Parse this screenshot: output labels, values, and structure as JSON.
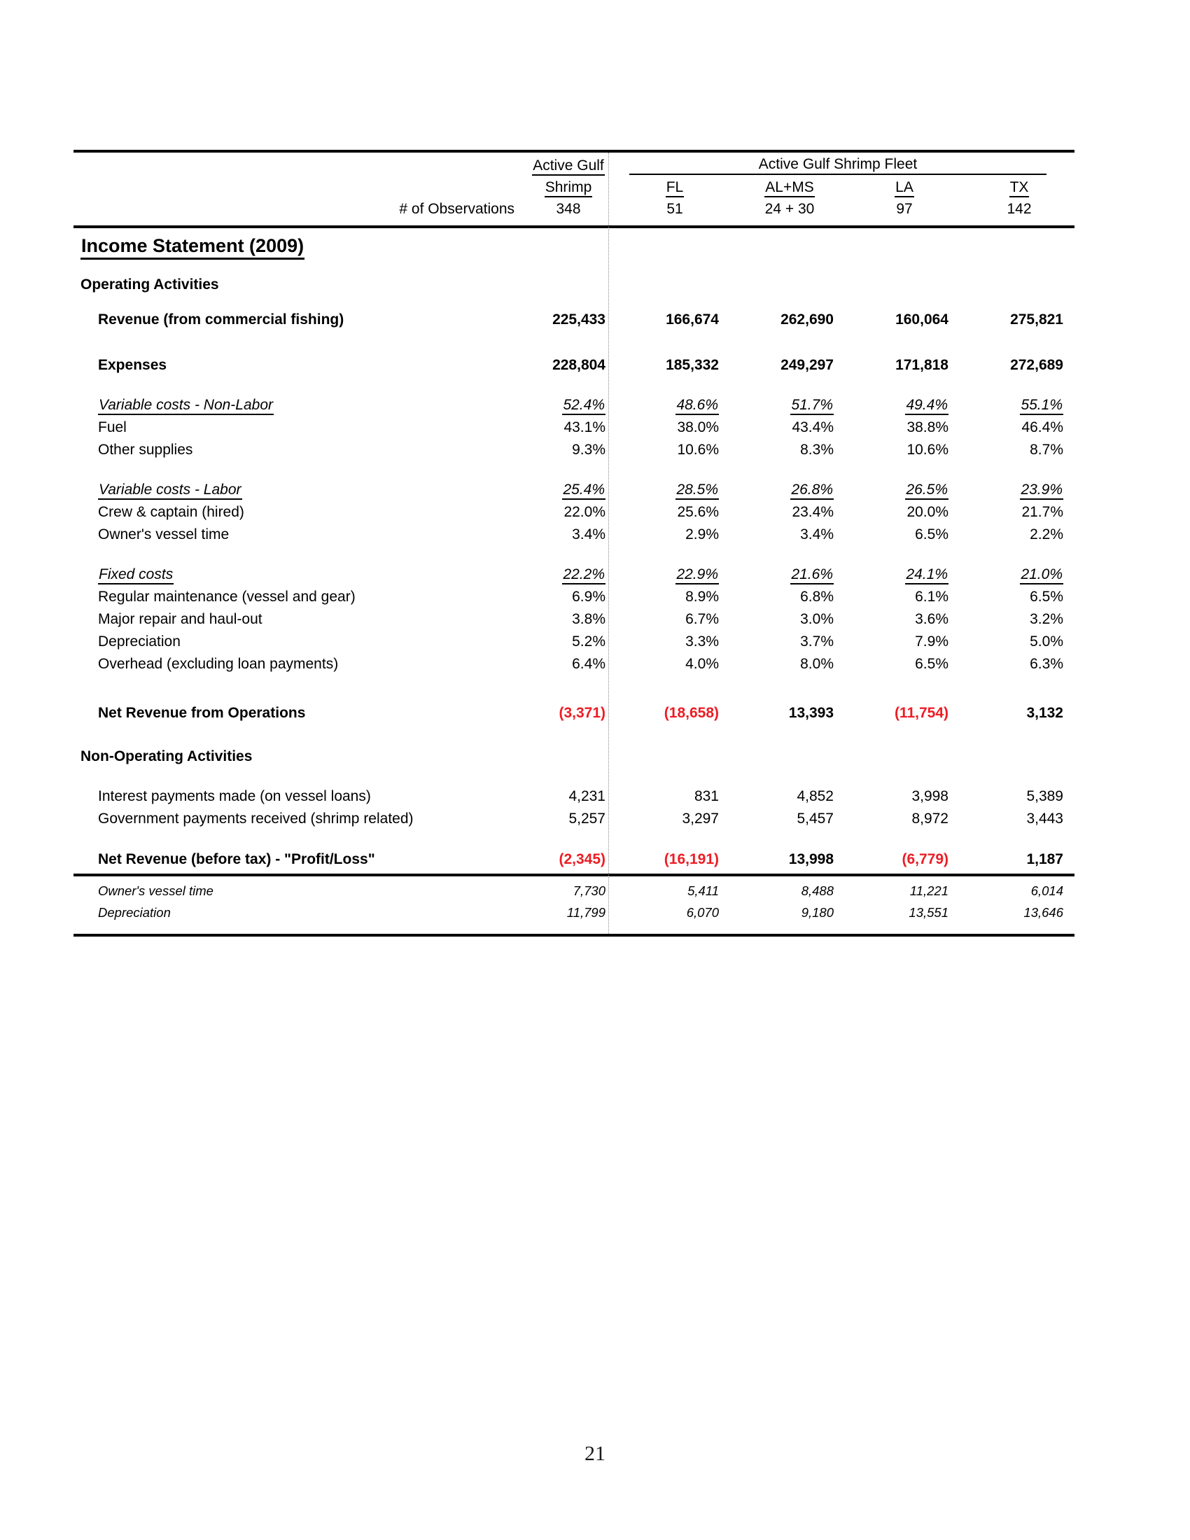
{
  "colors": {
    "text": "#000000",
    "negative": "#ed1c24",
    "divider": "#8a8a8a"
  },
  "page_number": "21",
  "table": {
    "header": {
      "col1_line1": "Active Gulf",
      "col1_line2": "Shrimp",
      "fleet_title": "Active Gulf Shrimp Fleet",
      "state_columns": [
        "FL",
        "AL+MS",
        "LA",
        "TX"
      ],
      "obs_label": "# of Observations",
      "obs_col1": "348",
      "obs_states": [
        "51",
        "24 + 30",
        "97",
        "142"
      ]
    },
    "rows": [
      {
        "style": "title",
        "gap": 6,
        "label": "Income Statement (2009)"
      },
      {
        "style": "section",
        "gap": 20,
        "label": "Operating Activities"
      },
      {
        "style": "item-bold",
        "gap": 18,
        "label": "Revenue (from commercial fishing)",
        "values": [
          "225,433",
          "166,674",
          "262,690",
          "160,064",
          "275,821"
        ]
      },
      {
        "style": "item-bold",
        "gap": 33,
        "label": "Expenses",
        "values": [
          "228,804",
          "185,332",
          "249,297",
          "171,818",
          "272,689"
        ]
      },
      {
        "style": "subtotal",
        "gap": 25,
        "label": "Variable costs - Non-Labor",
        "values": [
          "52.4%",
          "48.6%",
          "51.7%",
          "49.4%",
          "55.1%"
        ]
      },
      {
        "style": "item",
        "gap": 0,
        "label": "Fuel",
        "values": [
          "43.1%",
          "38.0%",
          "43.4%",
          "38.8%",
          "46.4%"
        ]
      },
      {
        "style": "item",
        "gap": 0,
        "label": "Other supplies",
        "values": [
          "9.3%",
          "10.6%",
          "8.3%",
          "10.6%",
          "8.7%"
        ]
      },
      {
        "style": "subtotal",
        "gap": 25,
        "label": "Variable costs - Labor",
        "values": [
          "25.4%",
          "28.5%",
          "26.8%",
          "26.5%",
          "23.9%"
        ]
      },
      {
        "style": "item",
        "gap": 0,
        "label": "Crew & captain (hired)",
        "values": [
          "22.0%",
          "25.6%",
          "23.4%",
          "20.0%",
          "21.7%"
        ]
      },
      {
        "style": "item",
        "gap": 0,
        "label": "Owner's vessel time",
        "values": [
          "3.4%",
          "2.9%",
          "3.4%",
          "6.5%",
          "2.2%"
        ]
      },
      {
        "style": "subtotal",
        "gap": 25,
        "label": "Fixed costs",
        "values": [
          "22.2%",
          "22.9%",
          "21.6%",
          "24.1%",
          "21.0%"
        ]
      },
      {
        "style": "item",
        "gap": 0,
        "label": "Regular maintenance (vessel and gear)",
        "values": [
          "6.9%",
          "8.9%",
          "6.8%",
          "6.1%",
          "6.5%"
        ]
      },
      {
        "style": "item",
        "gap": 0,
        "label": "Major repair and haul-out",
        "values": [
          "3.8%",
          "6.7%",
          "3.0%",
          "3.6%",
          "3.2%"
        ]
      },
      {
        "style": "item",
        "gap": 0,
        "label": "Depreciation",
        "values": [
          "5.2%",
          "3.3%",
          "3.7%",
          "7.9%",
          "5.0%"
        ]
      },
      {
        "style": "item",
        "gap": 0,
        "label": "Overhead (excluding loan payments)",
        "values": [
          "6.4%",
          "4.0%",
          "8.0%",
          "6.5%",
          "6.3%"
        ]
      },
      {
        "style": "total",
        "gap": 38,
        "label": "Net Revenue from Operations",
        "values": [
          "(3,371)",
          "(18,658)",
          "13,393",
          "(11,754)",
          "3,132"
        ]
      },
      {
        "style": "section",
        "gap": 30,
        "label": "Non-Operating Activities"
      },
      {
        "style": "item",
        "gap": 25,
        "label": "Interest payments made (on vessel loans)",
        "values": [
          "4,231",
          "831",
          "4,852",
          "3,998",
          "5,389"
        ]
      },
      {
        "style": "item",
        "gap": 0,
        "label": "Government payments received (shrimp related)",
        "values": [
          "5,257",
          "3,297",
          "5,457",
          "8,972",
          "3,443"
        ]
      },
      {
        "style": "total",
        "gap": 26,
        "label": "Net Revenue (before tax) - \"Profit/Loss\"",
        "values": [
          "(2,345)",
          "(16,191)",
          "13,998",
          "(6,779)",
          "1,187"
        ]
      },
      {
        "style": "rule",
        "gap": 4
      },
      {
        "style": "footnote",
        "gap": 6,
        "label": "Owner's vessel time",
        "values": [
          "7,730",
          "5,411",
          "8,488",
          "11,221",
          "6,014"
        ]
      },
      {
        "style": "footnote",
        "gap": 2,
        "label": "Depreciation",
        "values": [
          "11,799",
          "6,070",
          "9,180",
          "13,551",
          "13,646"
        ]
      }
    ]
  }
}
